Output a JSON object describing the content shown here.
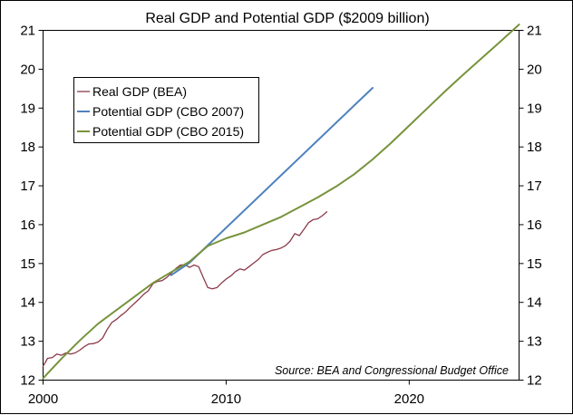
{
  "chart_data": {
    "type": "line",
    "title": "Real GDP and Potential GDP ($2009 billion)",
    "source_note": "Source: BEA and Congressional Budget Office",
    "xlabel": "",
    "ylabel": "",
    "xlim": [
      2000,
      2026
    ],
    "ylim": [
      12,
      21
    ],
    "x_ticks": [
      2000,
      2010,
      2020
    ],
    "y_ticks": [
      12,
      13,
      14,
      15,
      16,
      17,
      18,
      19,
      20,
      21
    ],
    "grid": false,
    "legend_position": "upper-left",
    "series": [
      {
        "name": "Real GDP (BEA)",
        "color": "#8b3a4a",
        "x": [
          2000.0,
          2000.25,
          2000.5,
          2000.75,
          2001.0,
          2001.25,
          2001.5,
          2001.75,
          2002.0,
          2002.25,
          2002.5,
          2002.75,
          2003.0,
          2003.25,
          2003.5,
          2003.75,
          2004.0,
          2004.25,
          2004.5,
          2004.75,
          2005.0,
          2005.25,
          2005.5,
          2005.75,
          2006.0,
          2006.25,
          2006.5,
          2006.75,
          2007.0,
          2007.25,
          2007.5,
          2007.75,
          2008.0,
          2008.25,
          2008.5,
          2008.75,
          2009.0,
          2009.25,
          2009.5,
          2009.75,
          2010.0,
          2010.25,
          2010.5,
          2010.75,
          2011.0,
          2011.25,
          2011.5,
          2011.75,
          2012.0,
          2012.25,
          2012.5,
          2012.75,
          2013.0,
          2013.25,
          2013.5,
          2013.75,
          2014.0,
          2014.25,
          2014.5,
          2014.75,
          2015.0,
          2015.25,
          2015.5
        ],
        "values": [
          12.36,
          12.56,
          12.58,
          12.67,
          12.64,
          12.7,
          12.67,
          12.7,
          12.77,
          12.86,
          12.93,
          12.94,
          12.98,
          13.08,
          13.3,
          13.48,
          13.56,
          13.66,
          13.75,
          13.87,
          13.98,
          14.09,
          14.21,
          14.3,
          14.48,
          14.54,
          14.56,
          14.64,
          14.75,
          14.87,
          14.96,
          14.97,
          14.9,
          14.96,
          14.92,
          14.64,
          14.38,
          14.35,
          14.38,
          14.5,
          14.6,
          14.68,
          14.79,
          14.86,
          14.83,
          14.92,
          15.01,
          15.1,
          15.23,
          15.29,
          15.34,
          15.36,
          15.4,
          15.46,
          15.58,
          15.77,
          15.72,
          15.88,
          16.05,
          16.13,
          16.15,
          16.23,
          16.33
        ]
      },
      {
        "name": "Potential GDP (CBO 2007)",
        "color": "#4f81bd",
        "x": [
          2007.0,
          2008.0,
          2018.0
        ],
        "values": [
          14.7,
          15.02,
          19.52
        ]
      },
      {
        "name": "Potential GDP (CBO 2015)",
        "color": "#77933c",
        "x": [
          2000.0,
          2001.0,
          2002.0,
          2003.0,
          2004.0,
          2005.0,
          2006.0,
          2007.0,
          2008.0,
          2009.0,
          2010.0,
          2011.0,
          2012.0,
          2013.0,
          2014.0,
          2015.0,
          2016.0,
          2017.0,
          2018.0,
          2019.0,
          2020.0,
          2021.0,
          2022.0,
          2023.0,
          2024.0,
          2025.0,
          2026.0
        ],
        "values": [
          12.05,
          12.55,
          13.02,
          13.45,
          13.8,
          14.15,
          14.5,
          14.78,
          15.05,
          15.45,
          15.65,
          15.8,
          16.0,
          16.2,
          16.45,
          16.7,
          16.98,
          17.3,
          17.68,
          18.1,
          18.55,
          19.0,
          19.45,
          19.88,
          20.3,
          20.72,
          21.15
        ]
      }
    ]
  }
}
